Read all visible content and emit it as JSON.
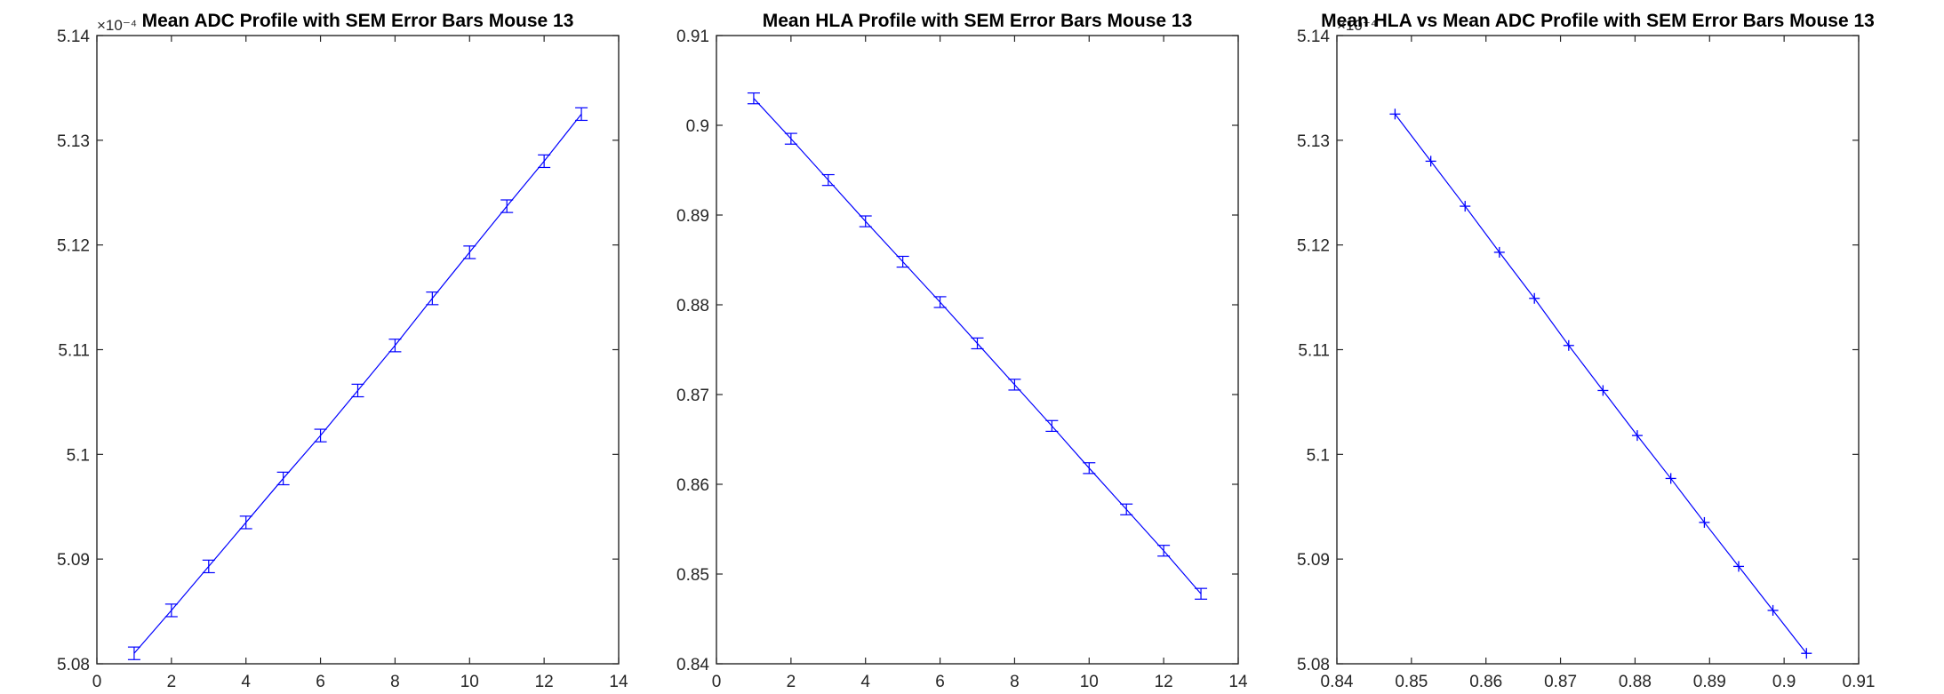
{
  "colors": {
    "series": "#0000ff",
    "axis": "#262626",
    "background": "#ffffff"
  },
  "chart_data": [
    {
      "type": "line",
      "title": "Mean ADC Profile with SEM Error Bars Mouse 13",
      "xlabel": "",
      "ylabel": "",
      "xlim": [
        0,
        14
      ],
      "ylim": [
        5.08,
        5.14
      ],
      "y_exponent_label": "×10⁻⁴",
      "x_ticks": [
        "0",
        "2",
        "4",
        "6",
        "8",
        "10",
        "12",
        "14"
      ],
      "y_ticks": [
        "5.08",
        "5.09",
        "5.1",
        "5.11",
        "5.12",
        "5.13",
        "5.14"
      ],
      "grid": false,
      "series": [
        {
          "x": [
            1,
            2,
            3,
            4,
            5,
            6,
            7,
            8,
            9,
            10,
            11,
            12,
            13
          ],
          "y": [
            5.081,
            5.0851,
            5.0893,
            5.0935,
            5.0977,
            5.1018,
            5.1061,
            5.1104,
            5.1149,
            5.1193,
            5.1237,
            5.128,
            5.1325
          ],
          "error": [
            0.0006,
            0.0006,
            0.0006,
            0.0006,
            0.0006,
            0.0006,
            0.0006,
            0.0006,
            0.0006,
            0.0006,
            0.0006,
            0.0006,
            0.0006
          ]
        }
      ]
    },
    {
      "type": "line",
      "title": "Mean HLA Profile with SEM Error Bars Mouse 13",
      "xlabel": "",
      "ylabel": "",
      "xlim": [
        0,
        14
      ],
      "ylim": [
        0.84,
        0.91
      ],
      "x_ticks": [
        "0",
        "2",
        "4",
        "6",
        "8",
        "10",
        "12",
        "14"
      ],
      "y_ticks": [
        "0.84",
        "0.85",
        "0.86",
        "0.87",
        "0.88",
        "0.89",
        "0.9",
        "0.91"
      ],
      "grid": false,
      "series": [
        {
          "x": [
            1,
            2,
            3,
            4,
            5,
            6,
            7,
            8,
            9,
            10,
            11,
            12,
            13
          ],
          "y": [
            0.903,
            0.8985,
            0.8939,
            0.8893,
            0.8848,
            0.8803,
            0.8757,
            0.8711,
            0.8665,
            0.8618,
            0.8572,
            0.8526,
            0.8478
          ],
          "error": [
            0.0006,
            0.0006,
            0.0006,
            0.0006,
            0.0006,
            0.0006,
            0.0006,
            0.0006,
            0.0006,
            0.0006,
            0.0006,
            0.0006,
            0.0006
          ]
        }
      ]
    },
    {
      "type": "line",
      "title": "Mean HLA vs Mean ADC Profile with SEM Error Bars Mouse 13",
      "xlabel": "",
      "ylabel": "",
      "xlim": [
        0.84,
        0.91
      ],
      "ylim": [
        5.08,
        5.14
      ],
      "y_exponent_label": "×10⁻⁴",
      "x_ticks": [
        "0.84",
        "0.85",
        "0.86",
        "0.87",
        "0.88",
        "0.89",
        "0.9",
        "0.91"
      ],
      "y_ticks": [
        "5.08",
        "5.09",
        "5.1",
        "5.11",
        "5.12",
        "5.13",
        "5.14"
      ],
      "grid": false,
      "series": [
        {
          "x": [
            0.8478,
            0.8526,
            0.8572,
            0.8618,
            0.8665,
            0.8711,
            0.8757,
            0.8803,
            0.8848,
            0.8893,
            0.8939,
            0.8985,
            0.903
          ],
          "y": [
            5.1325,
            5.128,
            5.1237,
            5.1193,
            5.1149,
            5.1104,
            5.1061,
            5.1018,
            5.0977,
            5.0935,
            5.0893,
            5.0851,
            5.081
          ],
          "marker": "+"
        }
      ]
    }
  ]
}
